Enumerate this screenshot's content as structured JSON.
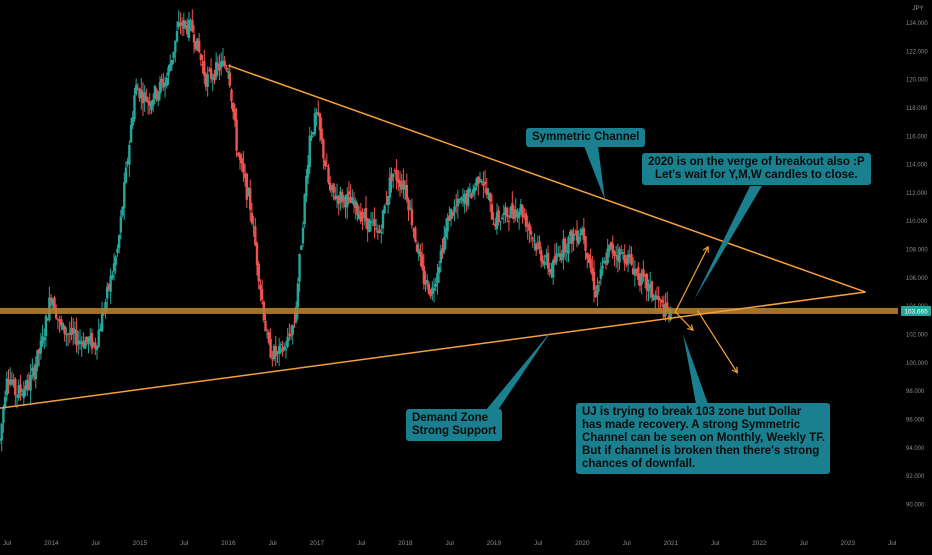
{
  "chart_data": {
    "type": "candlestick",
    "symbol_label": "JPY",
    "price_tag": "103.665",
    "ylim": [
      90,
      125
    ],
    "y_ticks": [
      "90.000",
      "92.000",
      "94.000",
      "96.000",
      "98.000",
      "100.000",
      "102.000",
      "104.000",
      "106.000",
      "108.000",
      "110.000",
      "112.000",
      "114.000",
      "116.000",
      "118.000",
      "120.000",
      "122.000",
      "124.000"
    ],
    "y_tick_values": [
      90,
      92,
      94,
      96,
      98,
      100,
      102,
      104,
      106,
      108,
      110,
      112,
      114,
      116,
      118,
      120,
      122,
      124
    ],
    "x_ticks": [
      "Jul",
      "2014",
      "Jul",
      "2015",
      "Jul",
      "2016",
      "Jul",
      "2017",
      "Jul",
      "2018",
      "Jul",
      "2019",
      "Jul",
      "2020",
      "Jul",
      "2021",
      "Jul",
      "2022",
      "Jul",
      "2023",
      "Jul"
    ],
    "x_tick_years": [
      2013.5,
      2014,
      2014.5,
      2015,
      2015.5,
      2016,
      2016.5,
      2017,
      2017.5,
      2018,
      2018.5,
      2019,
      2019.5,
      2020,
      2020.5,
      2021,
      2021.5,
      2022,
      2022.5,
      2023,
      2023.5
    ],
    "price_path": [
      [
        2013.42,
        94.5
      ],
      [
        2013.5,
        99.5
      ],
      [
        2013.6,
        97.8
      ],
      [
        2013.75,
        98.5
      ],
      [
        2013.9,
        101.5
      ],
      [
        2014.0,
        105.0
      ],
      [
        2014.1,
        102.5
      ],
      [
        2014.25,
        101.8
      ],
      [
        2014.5,
        101.3
      ],
      [
        2014.75,
        108.0
      ],
      [
        2014.95,
        119.5
      ],
      [
        2015.1,
        118.5
      ],
      [
        2015.3,
        120.0
      ],
      [
        2015.45,
        124.0
      ],
      [
        2015.6,
        123.5
      ],
      [
        2015.75,
        120.0
      ],
      [
        2015.92,
        121.0
      ],
      [
        2016.0,
        121.0
      ],
      [
        2016.1,
        115.0
      ],
      [
        2016.25,
        111.0
      ],
      [
        2016.45,
        101.0
      ],
      [
        2016.55,
        100.5
      ],
      [
        2016.65,
        101.2
      ],
      [
        2016.75,
        103.0
      ],
      [
        2016.92,
        116.0
      ],
      [
        2017.0,
        117.5
      ],
      [
        2017.15,
        112.0
      ],
      [
        2017.35,
        111.5
      ],
      [
        2017.5,
        110.5
      ],
      [
        2017.7,
        109.0
      ],
      [
        2017.85,
        113.5
      ],
      [
        2018.0,
        112.5
      ],
      [
        2018.2,
        106.0
      ],
      [
        2018.3,
        105.0
      ],
      [
        2018.5,
        110.5
      ],
      [
        2018.75,
        112.0
      ],
      [
        2018.85,
        113.5
      ],
      [
        2019.0,
        110.0
      ],
      [
        2019.15,
        110.5
      ],
      [
        2019.3,
        111.0
      ],
      [
        2019.5,
        108.0
      ],
      [
        2019.65,
        106.5
      ],
      [
        2019.75,
        108.0
      ],
      [
        2019.9,
        109.0
      ],
      [
        2020.0,
        109.5
      ],
      [
        2020.15,
        105.0
      ],
      [
        2020.3,
        108.0
      ],
      [
        2020.5,
        107.5
      ],
      [
        2020.65,
        106.0
      ],
      [
        2020.8,
        104.8
      ],
      [
        2020.95,
        103.5
      ],
      [
        2021.0,
        103.3
      ]
    ],
    "annotations": {
      "support_level": 103.665,
      "upper_trendline": [
        [
          2016.0,
          121.0
        ],
        [
          2023.2,
          105.0
        ]
      ],
      "lower_trendline": [
        [
          2013.42,
          96.8
        ],
        [
          2023.2,
          105.0
        ]
      ],
      "projection_arrows": [
        [
          [
            2021.05,
            103.6
          ],
          [
            2021.42,
            108.2
          ]
        ],
        [
          [
            2021.05,
            103.6
          ],
          [
            2021.25,
            102.3
          ]
        ],
        [
          [
            2021.3,
            103.7
          ],
          [
            2021.75,
            99.3
          ]
        ]
      ]
    }
  },
  "callouts": {
    "symmetric": [
      "Symmetric Channel"
    ],
    "breakout": [
      "2020 is on the verge of breakout also :P",
      "Let's wait for Y,M,W candles to close."
    ],
    "demand": [
      "Demand Zone",
      "Strong Support"
    ],
    "uj": [
      "UJ is trying to break 103 zone but Dollar",
      "has made recovery. A strong Symmetric",
      "Channel can be seen on Monthly, Weekly TF.",
      "But if channel is broken then there's strong",
      "chances of downfall."
    ]
  },
  "colors": {
    "background": "#000000",
    "candle_up": "#26a69a",
    "candle_down": "#ef5350",
    "trendline": "#f5a03a",
    "support_band": "#b08030",
    "callout_fill": "#1a7f8e",
    "price_tag": "#26a69a"
  }
}
